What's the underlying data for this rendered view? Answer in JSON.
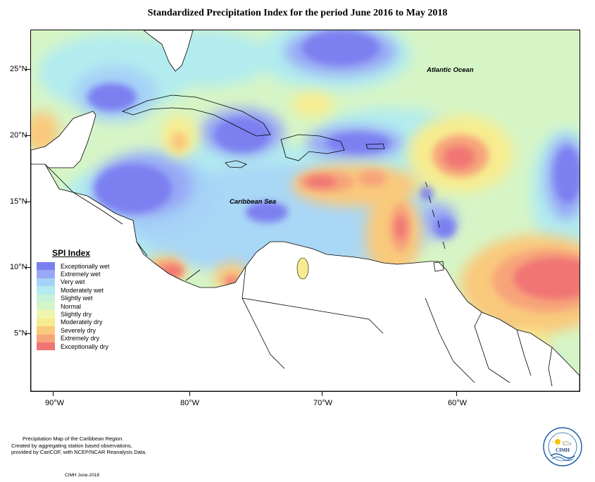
{
  "title": "Standardized Precipitation Index for the period June 2016 to May 2018",
  "axes": {
    "lat_labels": [
      "25°N",
      "20°N",
      "15°N",
      "10°N",
      "5°N"
    ],
    "lon_labels": [
      "90°W",
      "80°W",
      "70°W",
      "60°W"
    ]
  },
  "places": {
    "ocean": "Atlantic Ocean",
    "sea": "Caribbean Sea"
  },
  "legend": {
    "title": "SPI Index",
    "items": [
      {
        "label": "Exceptionally wet",
        "color": "#7b7ff0"
      },
      {
        "label": "Extremely wet",
        "color": "#98a8f5"
      },
      {
        "label": "Very wet",
        "color": "#a6d2f7"
      },
      {
        "label": "Moderately wet",
        "color": "#b2ecef"
      },
      {
        "label": "Slightly wet",
        "color": "#c7f2d8"
      },
      {
        "label": "Normal",
        "color": "#d6f5c6"
      },
      {
        "label": "Slightly dry",
        "color": "#eef5ac"
      },
      {
        "label": "Moderately dry",
        "color": "#f7ec8f"
      },
      {
        "label": "Severely dry",
        "color": "#f9c97c"
      },
      {
        "label": "Extremely dry",
        "color": "#f7a47a"
      },
      {
        "label": "Exceptionally dry",
        "color": "#f07473"
      }
    ]
  },
  "footnote": {
    "line1": "Precipitation Map of the Caribbean Region.",
    "line2": "Created by aggregating station based observations,",
    "line3": "provided by CariCOF, with NCEP/NCAR Reanalysis Data.",
    "org_date": "CIMH June-2018"
  },
  "logo": {
    "text": "CIMH",
    "icon": "sun-cloud-logo-icon"
  }
}
